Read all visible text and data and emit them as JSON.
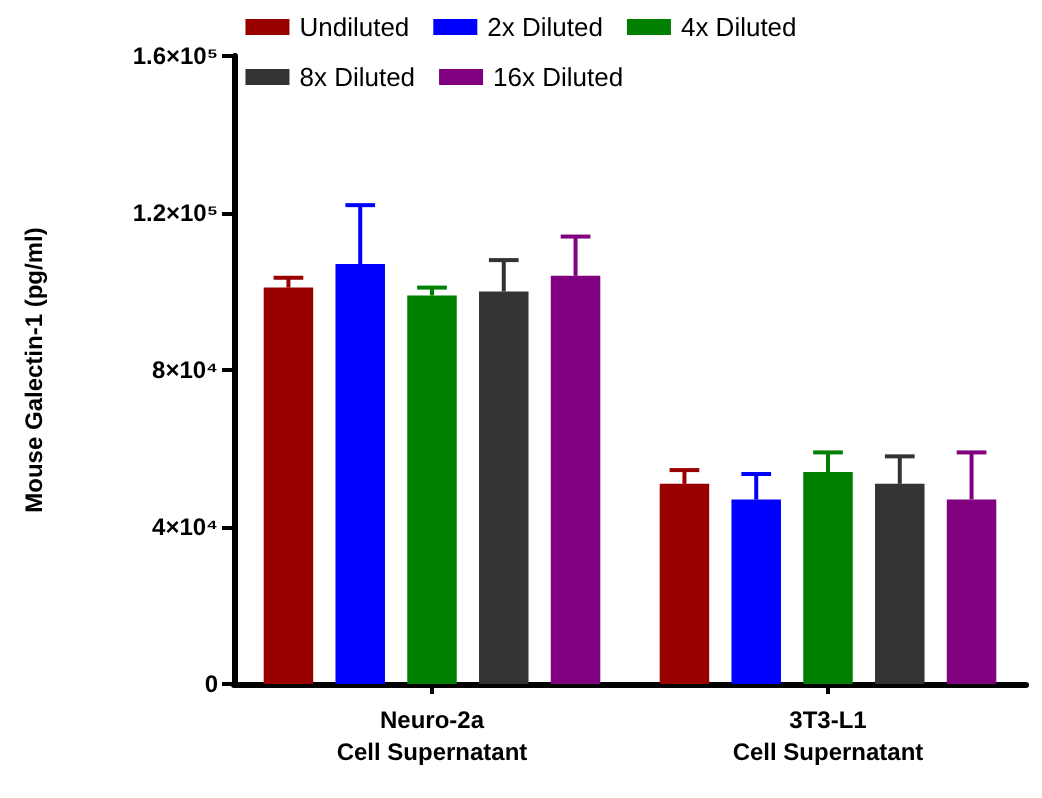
{
  "chart_data": {
    "type": "bar",
    "ylabel": "Mouse Galectin-1 (pg/ml)",
    "categories": [
      "Neuro-2a\nCell Supernatant",
      "3T3-L1\nCell Supernatant"
    ],
    "series": [
      {
        "name": "Undiluted",
        "color": "#990000",
        "values": [
          101000,
          51000
        ],
        "errors": [
          [
            101000,
            103500
          ],
          [
            51000,
            54500
          ]
        ]
      },
      {
        "name": "2x Diluted",
        "color": "#0000ff",
        "values": [
          107000,
          47000
        ],
        "errors": [
          [
            107000,
            122000
          ],
          [
            47000,
            53500
          ]
        ]
      },
      {
        "name": "4x Diluted",
        "color": "#007f00",
        "values": [
          99000,
          54000
        ],
        "errors": [
          [
            99000,
            101000
          ],
          [
            54000,
            59000
          ]
        ]
      },
      {
        "name": "8x Diluted",
        "color": "#333333",
        "values": [
          100000,
          51000
        ],
        "errors": [
          [
            100000,
            108000
          ],
          [
            51000,
            58000
          ]
        ]
      },
      {
        "name": "16x Diluted",
        "color": "#800080",
        "values": [
          104000,
          47000
        ],
        "errors": [
          [
            104000,
            114000
          ],
          [
            47000,
            59000
          ]
        ]
      }
    ],
    "ylim": [
      0,
      160000
    ],
    "yticks": [
      0,
      {
        "value": 40000,
        "label": "4×10⁴"
      },
      {
        "value": 80000,
        "label": "8×10⁴"
      },
      {
        "value": 120000,
        "label": "1.2×10⁵"
      },
      {
        "value": 160000,
        "label": "1.6×10⁵"
      }
    ],
    "grid": false,
    "legend": "top"
  }
}
